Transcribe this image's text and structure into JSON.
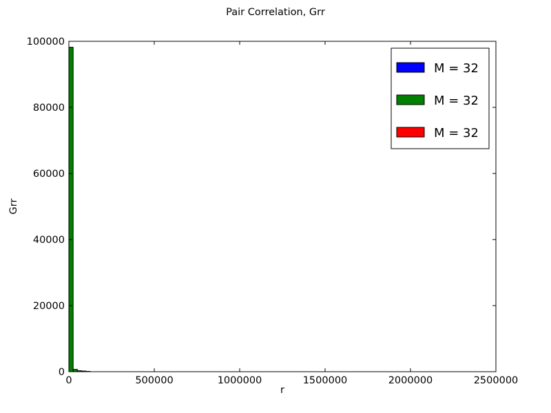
{
  "chart_data": {
    "type": "bar",
    "title": "Pair Correlation, Grr",
    "xlabel": "r",
    "ylabel": "Grr",
    "xlim": [
      0,
      2500000
    ],
    "ylim": [
      0,
      100000
    ],
    "xticks": [
      0,
      500000,
      1000000,
      1500000,
      2000000,
      2500000
    ],
    "yticks": [
      0,
      20000,
      40000,
      60000,
      80000,
      100000
    ],
    "grid": false,
    "legend_placement": "top-right",
    "bin_width": 25000,
    "series": [
      {
        "name": "M = 32",
        "color": "#0000ff",
        "values": []
      },
      {
        "name": "M = 32",
        "color": "#008000",
        "values": [
          {
            "x0": 0,
            "x1": 25000,
            "y": 98200
          },
          {
            "x0": 25000,
            "x1": 50000,
            "y": 700
          },
          {
            "x0": 50000,
            "x1": 75000,
            "y": 300
          },
          {
            "x0": 75000,
            "x1": 100000,
            "y": 200
          },
          {
            "x0": 100000,
            "x1": 125000,
            "y": 100
          }
        ]
      },
      {
        "name": "M = 32",
        "color": "#ff0000",
        "values": []
      }
    ]
  }
}
